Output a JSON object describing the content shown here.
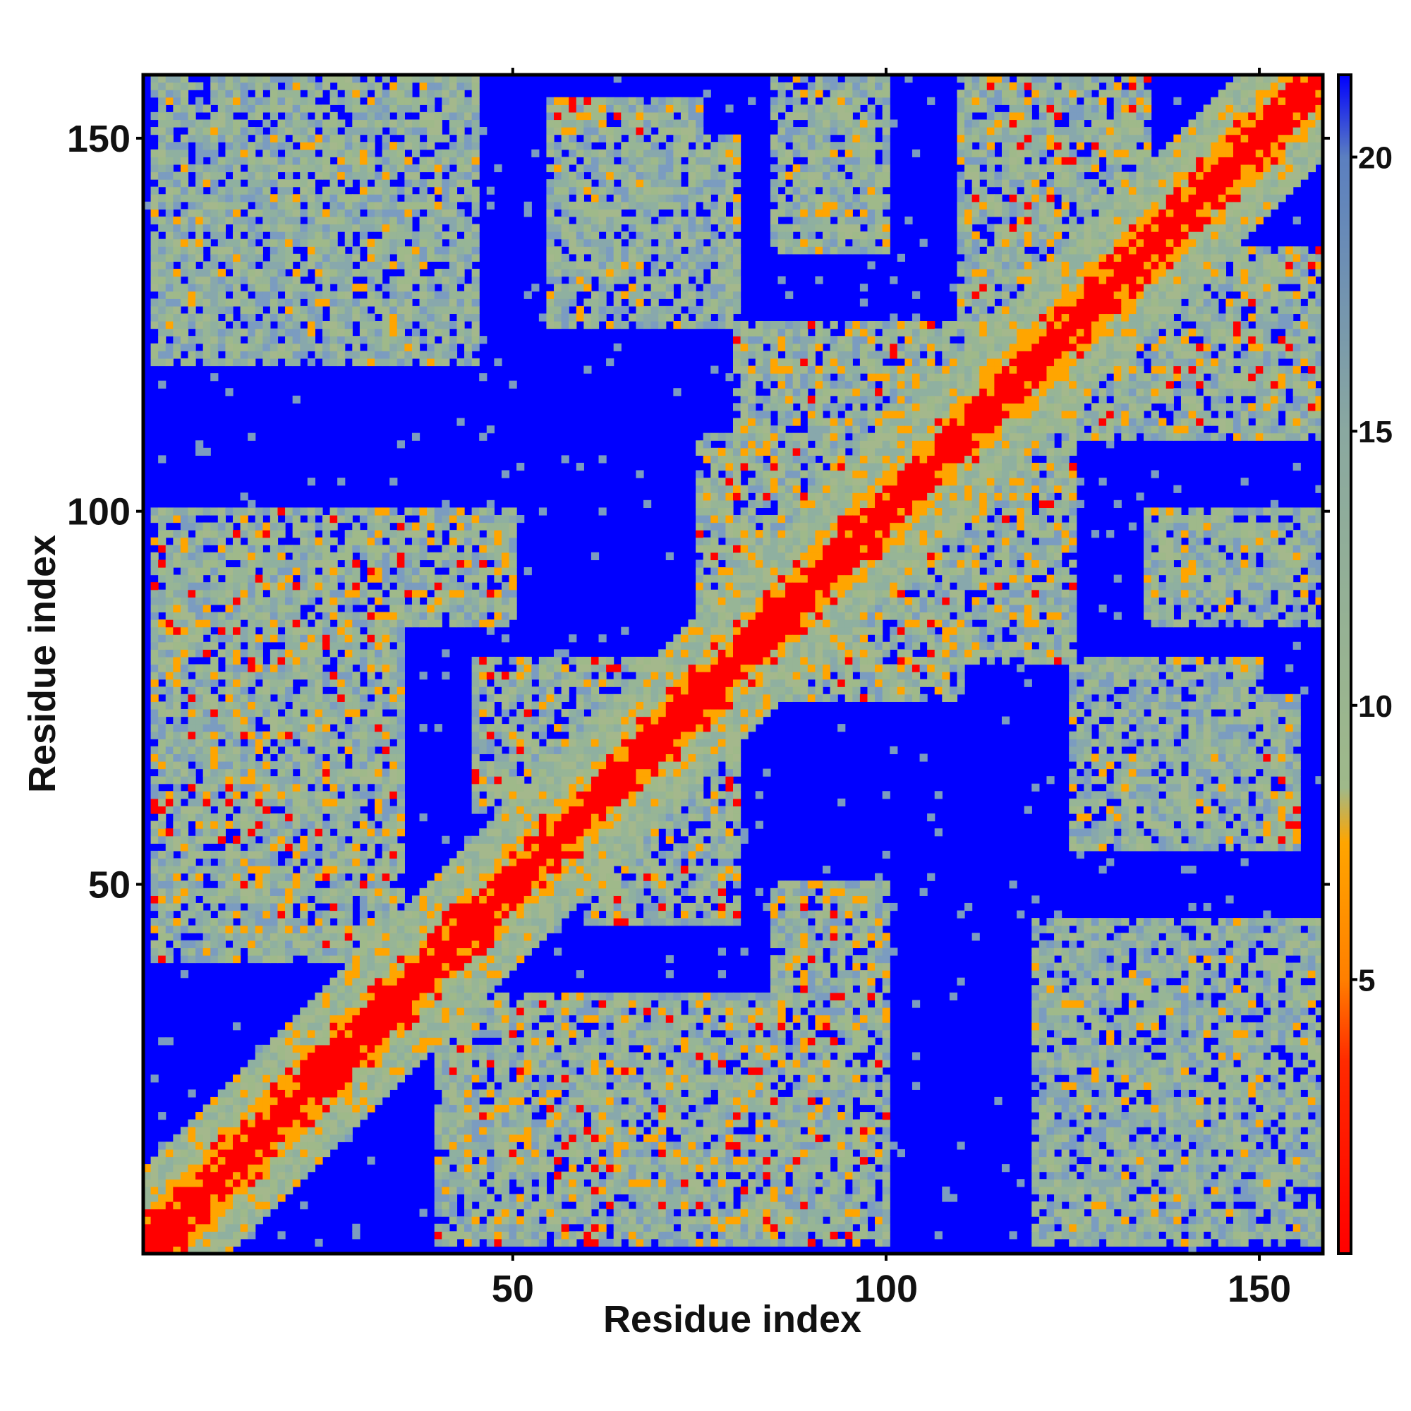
{
  "chart_data": {
    "type": "heatmap",
    "title": "",
    "xlabel": "Residue index",
    "ylabel": "Residue index",
    "x_ticks": [
      50,
      100,
      150
    ],
    "y_ticks": [
      50,
      100,
      150
    ],
    "xlim": [
      0.5,
      158.5
    ],
    "ylim": [
      0.5,
      158.5
    ],
    "n_residues": 158,
    "symmetric": true,
    "colorbar": {
      "ticks": [
        5,
        10,
        15,
        20
      ],
      "range": [
        0,
        21.5
      ],
      "stops": [
        {
          "value": 0,
          "color": "#ff0000"
        },
        {
          "value": 3.5,
          "color": "#ff2a00"
        },
        {
          "value": 5,
          "color": "#ff7f00"
        },
        {
          "value": 7.5,
          "color": "#ffa500"
        },
        {
          "value": 8.5,
          "color": "#9fb98a"
        },
        {
          "value": 15,
          "color": "#8aa8a0"
        },
        {
          "value": 20,
          "color": "#5b7fc0"
        },
        {
          "value": 21.5,
          "color": "#0000ff"
        }
      ]
    },
    "colors": {
      "background": "#0000ff",
      "contact": "#ff0000",
      "near": "#ffa500",
      "mid": "#9fb98a"
    },
    "regions": [
      {
        "x_range": [
          1,
          158
        ],
        "y_range": [
          1,
          158
        ],
        "level": "diagonal-band"
      },
      {
        "x_range": [
          2,
          20
        ],
        "y_range": [
          85,
          100
        ],
        "level": "mid-orange"
      },
      {
        "x_range": [
          2,
          35
        ],
        "y_range": [
          40,
          85
        ],
        "level": "mid-orange"
      },
      {
        "x_range": [
          2,
          45
        ],
        "y_range": [
          120,
          158
        ],
        "level": "mid"
      },
      {
        "x_range": [
          40,
          75
        ],
        "y_range": [
          2,
          35
        ],
        "level": "mid-orange"
      },
      {
        "x_range": [
          60,
          80
        ],
        "y_range": [
          45,
          80
        ],
        "level": "mid-orange"
      },
      {
        "x_range": [
          55,
          80
        ],
        "y_range": [
          125,
          150
        ],
        "level": "mid"
      },
      {
        "x_range": [
          80,
          110
        ],
        "y_range": [
          75,
          125
        ],
        "level": "mid-orange"
      },
      {
        "x_range": [
          85,
          100
        ],
        "y_range": [
          2,
          50
        ],
        "level": "mid-orange"
      },
      {
        "x_range": [
          110,
          135
        ],
        "y_range": [
          110,
          158
        ],
        "level": "mid-orange"
      },
      {
        "x_range": [
          130,
          158
        ],
        "y_range": [
          2,
          45
        ],
        "level": "mid-orange"
      },
      {
        "x_range": [
          125,
          155
        ],
        "y_range": [
          55,
          75
        ],
        "level": "mid-orange"
      },
      {
        "x_range": [
          135,
          158
        ],
        "y_range": [
          85,
          100
        ],
        "level": "mid"
      },
      {
        "x_range": [
          135,
          158
        ],
        "y_range": [
          110,
          135
        ],
        "level": "mid-orange"
      }
    ]
  }
}
